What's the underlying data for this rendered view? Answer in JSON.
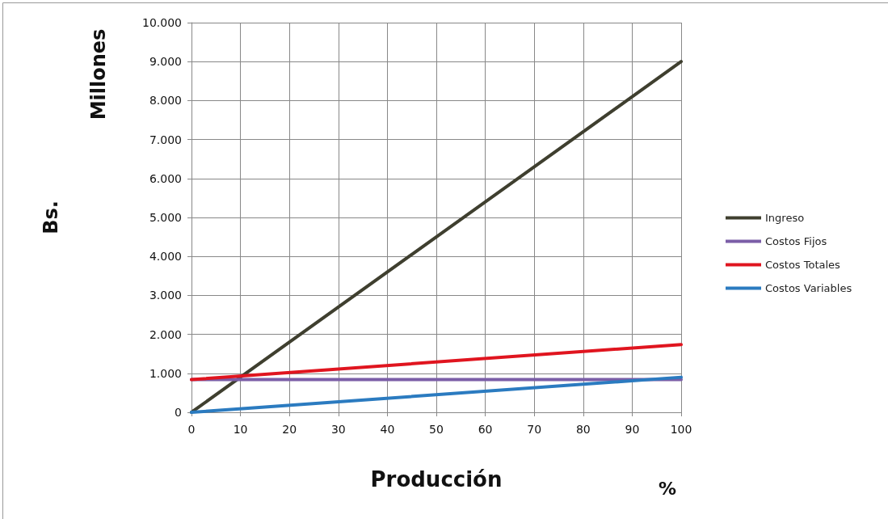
{
  "chart_data": {
    "type": "line",
    "xlabel": "Producción",
    "ylabel": "Bs.",
    "annotations": [
      "Millones",
      "%"
    ],
    "x": [
      0,
      100
    ],
    "series": [
      {
        "name": "Ingreso",
        "color": "#3f3f2f",
        "values": [
          0,
          9000
        ]
      },
      {
        "name": "Costos Fijos",
        "color": "#7b5ea7",
        "values": [
          840,
          840
        ]
      },
      {
        "name": "Costos Totales",
        "color": "#e0151f",
        "values": [
          840,
          1740
        ]
      },
      {
        "name": "Costos Variables",
        "color": "#2b7bc0",
        "values": [
          0,
          900
        ]
      }
    ],
    "xlim": [
      0,
      100
    ],
    "xticks": [
      0,
      10,
      20,
      30,
      40,
      50,
      60,
      70,
      80,
      90,
      100
    ],
    "ylim": [
      0,
      10000
    ],
    "yticks": [
      0,
      {
        "value": 1000,
        "label": "1.000"
      },
      {
        "value": 2000,
        "label": "2.000"
      },
      {
        "value": 3000,
        "label": "3.000"
      },
      {
        "value": 4000,
        "label": "4.000"
      },
      {
        "value": 5000,
        "label": "5.000"
      },
      {
        "value": 6000,
        "label": "6.000"
      },
      {
        "value": 7000,
        "label": "7.000"
      },
      {
        "value": 8000,
        "label": "8.000"
      },
      {
        "value": 9000,
        "label": "9.000"
      },
      {
        "value": 10000,
        "label": "10.000"
      }
    ],
    "grid": true,
    "legend": "right",
    "marker": "none",
    "line_style": "solid"
  }
}
